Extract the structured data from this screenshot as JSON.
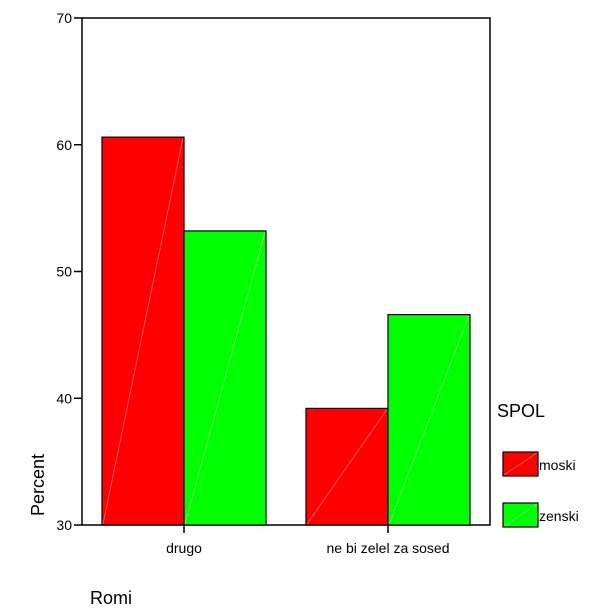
{
  "chart_data": {
    "type": "bar",
    "categories": [
      "drugo",
      "ne bi zelel za sosed"
    ],
    "series": [
      {
        "name": "moski",
        "values": [
          60.6,
          39.2
        ],
        "color": "#ff0000"
      },
      {
        "name": "zenski",
        "values": [
          53.2,
          46.6
        ],
        "color": "#00ff00"
      }
    ],
    "xlabel": "Romi",
    "ylabel": "Percent",
    "ylim": [
      30,
      70
    ],
    "yticks": [
      "30",
      "40",
      "50",
      "60",
      "70"
    ],
    "grid": false,
    "legend": {
      "title": "SPOL",
      "placement": "right"
    }
  }
}
